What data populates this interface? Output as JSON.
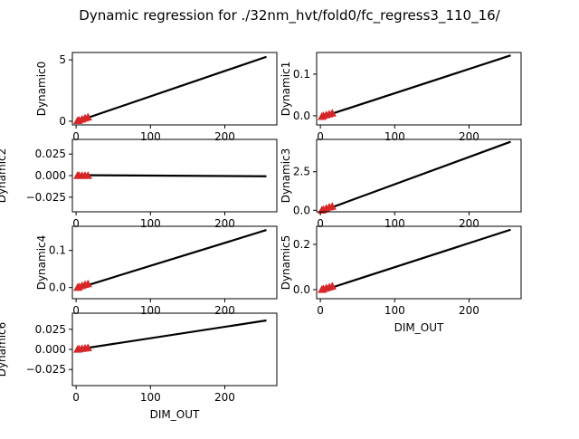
{
  "title": "Dynamic regression for ./32nm_hvt/fold0/fc_regress3_110_16/",
  "line_color": "#000000",
  "marker_color": "#d62728",
  "chart_data": [
    {
      "type": "line",
      "ylabel": "Dynamic0",
      "xlabel": "",
      "xlim": [
        -5,
        270
      ],
      "ylim": [
        -0.3,
        5.6
      ],
      "xticks": [
        0,
        100,
        200
      ],
      "yticks": [
        0,
        5
      ],
      "ytick_labels": [
        "0",
        "5"
      ],
      "fit_line": {
        "x": [
          2,
          256
        ],
        "y": [
          0.0,
          5.25
        ]
      },
      "markers": {
        "x": [
          2,
          4,
          8,
          12,
          16
        ],
        "y": [
          0.04,
          0.08,
          0.16,
          0.25,
          0.33
        ]
      }
    },
    {
      "type": "line",
      "ylabel": "Dynamic1",
      "xlabel": "",
      "xlim": [
        -5,
        270
      ],
      "ylim": [
        -0.022,
        0.152
      ],
      "xticks": [
        0,
        100,
        200
      ],
      "yticks": [
        0.0,
        0.1
      ],
      "ytick_labels": [
        "0.0",
        "0.1"
      ],
      "fit_line": {
        "x": [
          2,
          256
        ],
        "y": [
          -0.003,
          0.145
        ]
      },
      "markers": {
        "x": [
          2,
          4,
          8,
          12,
          16
        ],
        "y": [
          -0.002,
          0.0,
          0.002,
          0.004,
          0.006
        ]
      }
    },
    {
      "type": "line",
      "ylabel": "Dynamic2",
      "xlabel": "",
      "xlim": [
        -5,
        270
      ],
      "ylim": [
        -0.042,
        0.042
      ],
      "xticks": [
        0,
        100,
        200
      ],
      "yticks": [
        -0.025,
        0.0,
        0.025
      ],
      "ytick_labels": [
        "−0.025",
        "0.000",
        "0.025"
      ],
      "fit_line": {
        "x": [
          2,
          256
        ],
        "y": [
          0.0005,
          -0.0008
        ]
      },
      "markers": {
        "x": [
          2,
          4,
          8,
          12,
          16
        ],
        "y": [
          0.0,
          0.0,
          0.0,
          0.0,
          0.0
        ]
      }
    },
    {
      "type": "line",
      "ylabel": "Dynamic3",
      "xlabel": "",
      "xlim": [
        -5,
        270
      ],
      "ylim": [
        -0.1,
        4.6
      ],
      "xticks": [
        0,
        100,
        200
      ],
      "yticks": [
        0.0,
        2.5
      ],
      "ytick_labels": [
        "0.0",
        "2.5"
      ],
      "fit_line": {
        "x": [
          2,
          256
        ],
        "y": [
          -0.05,
          4.45
        ]
      },
      "markers": {
        "x": [
          2,
          4,
          8,
          12,
          16
        ],
        "y": [
          0.0,
          0.05,
          0.12,
          0.2,
          0.25
        ]
      }
    },
    {
      "type": "line",
      "ylabel": "Dynamic4",
      "xlabel": "",
      "xlim": [
        -5,
        270
      ],
      "ylim": [
        -0.03,
        0.165
      ],
      "xticks": [
        0,
        100,
        200
      ],
      "yticks": [
        0.0,
        0.1
      ],
      "ytick_labels": [
        "0.0",
        "0.1"
      ],
      "fit_line": {
        "x": [
          2,
          256
        ],
        "y": [
          -0.002,
          0.155
        ]
      },
      "markers": {
        "x": [
          2,
          4,
          8,
          12,
          16
        ],
        "y": [
          0.0,
          0.002,
          0.005,
          0.008,
          0.01
        ]
      }
    },
    {
      "type": "line",
      "ylabel": "Dynamic5",
      "xlabel": "DIM_OUT",
      "xlim": [
        -5,
        270
      ],
      "ylim": [
        -0.04,
        0.28
      ],
      "xticks": [
        0,
        100,
        200
      ],
      "yticks": [
        0.0,
        0.2
      ],
      "ytick_labels": [
        "0.0",
        "0.2"
      ],
      "fit_line": {
        "x": [
          2,
          256
        ],
        "y": [
          -0.005,
          0.265
        ]
      },
      "markers": {
        "x": [
          2,
          4,
          8,
          12,
          16
        ],
        "y": [
          0.0,
          0.003,
          0.007,
          0.011,
          0.015
        ]
      }
    },
    {
      "type": "line",
      "ylabel": "Dynamic6",
      "xlabel": "DIM_OUT",
      "xlim": [
        -5,
        270
      ],
      "ylim": [
        -0.045,
        0.045
      ],
      "xticks": [
        0,
        100,
        200
      ],
      "yticks": [
        -0.025,
        0.0,
        0.025
      ],
      "ytick_labels": [
        "−0.025",
        "0.000",
        "0.025"
      ],
      "fit_line": {
        "x": [
          2,
          256
        ],
        "y": [
          0.0,
          0.036
        ]
      },
      "markers": {
        "x": [
          2,
          4,
          8,
          12,
          16
        ],
        "y": [
          0.0,
          0.0005,
          0.001,
          0.0015,
          0.002
        ]
      }
    }
  ]
}
